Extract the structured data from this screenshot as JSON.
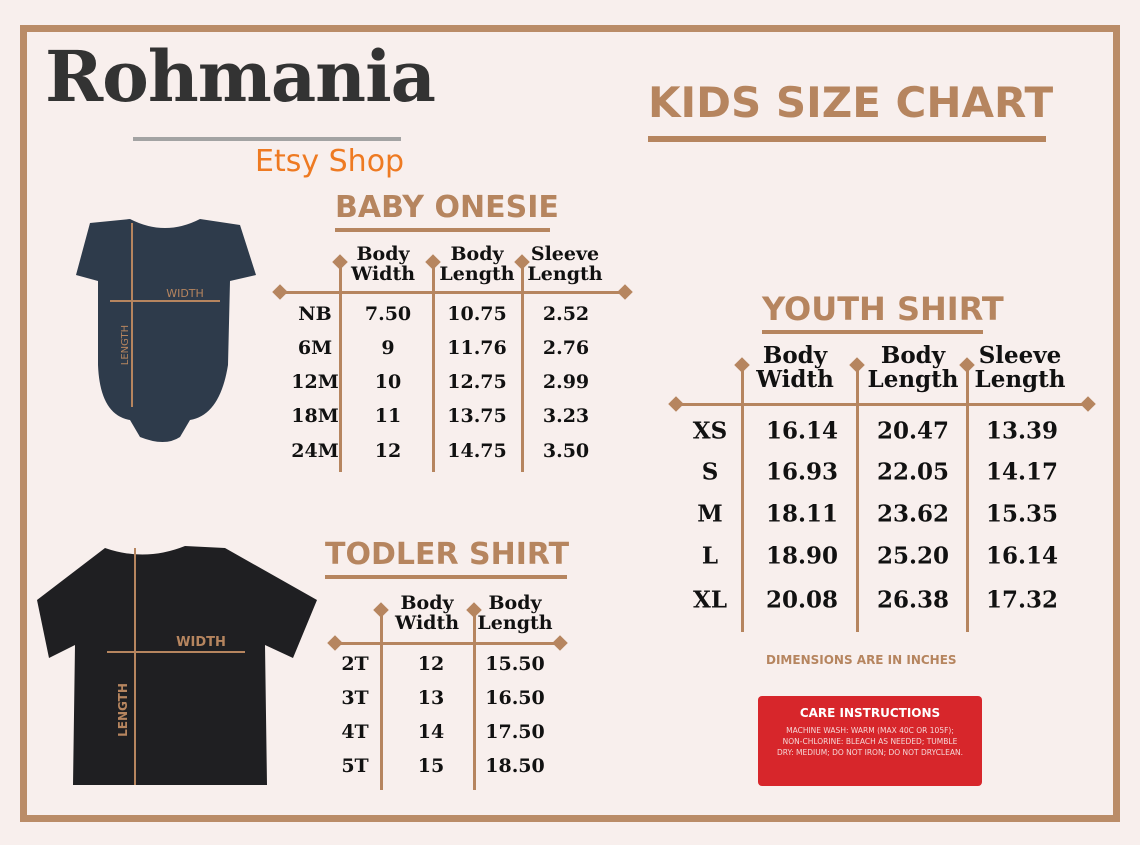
{
  "brand": {
    "logo": "Rohmania",
    "subtitle": "Etsy Shop"
  },
  "title": "KIDS SIZE CHART",
  "garment_labels": {
    "width": "WIDTH",
    "length": "LENGTH"
  },
  "onesie": {
    "title": "BABY ONESIE",
    "headers": [
      "Body\nWidth",
      "Body\nLength",
      "Sleeve\nLength"
    ],
    "rows": [
      [
        "NB",
        "7.50",
        "10.75",
        "2.52"
      ],
      [
        "6M",
        "9",
        "11.76",
        "2.76"
      ],
      [
        "12M",
        "10",
        "12.75",
        "2.99"
      ],
      [
        "18M",
        "11",
        "13.75",
        "3.23"
      ],
      [
        "24M",
        "12",
        "14.75",
        "3.50"
      ]
    ]
  },
  "toddler": {
    "title": "TODLER SHIRT",
    "headers": [
      "Body\nWidth",
      "Body\nLength"
    ],
    "rows": [
      [
        "2T",
        "12",
        "15.50"
      ],
      [
        "3T",
        "13",
        "16.50"
      ],
      [
        "4T",
        "14",
        "17.50"
      ],
      [
        "5T",
        "15",
        "18.50"
      ]
    ]
  },
  "youth": {
    "title": "YOUTH SHIRT",
    "headers": [
      "Body\nWidth",
      "Body\nLength",
      "Sleeve\nLength"
    ],
    "rows": [
      [
        "XS",
        "16.14",
        "20.47",
        "13.39"
      ],
      [
        "S",
        "16.93",
        "22.05",
        "14.17"
      ],
      [
        "M",
        "18.11",
        "23.62",
        "15.35"
      ],
      [
        "L",
        "18.90",
        "25.20",
        "16.14"
      ],
      [
        "XL",
        "20.08",
        "26.38",
        "17.32"
      ]
    ]
  },
  "note": "DIMENSIONS ARE IN INCHES",
  "care": {
    "title": "CARE INSTRUCTIONS",
    "text": "MACHINE WASH: WARM (MAX 40C OR 105F); NON-CHLORINE: BLEACH AS NEEDED; TUMBLE DRY: MEDIUM; DO NOT IRON; DO NOT DRYCLEAN."
  },
  "colors": {
    "accent": "#b6855f",
    "care_bg": "#d7262b",
    "logo": "#333333",
    "etsy": "#ee7a22"
  }
}
